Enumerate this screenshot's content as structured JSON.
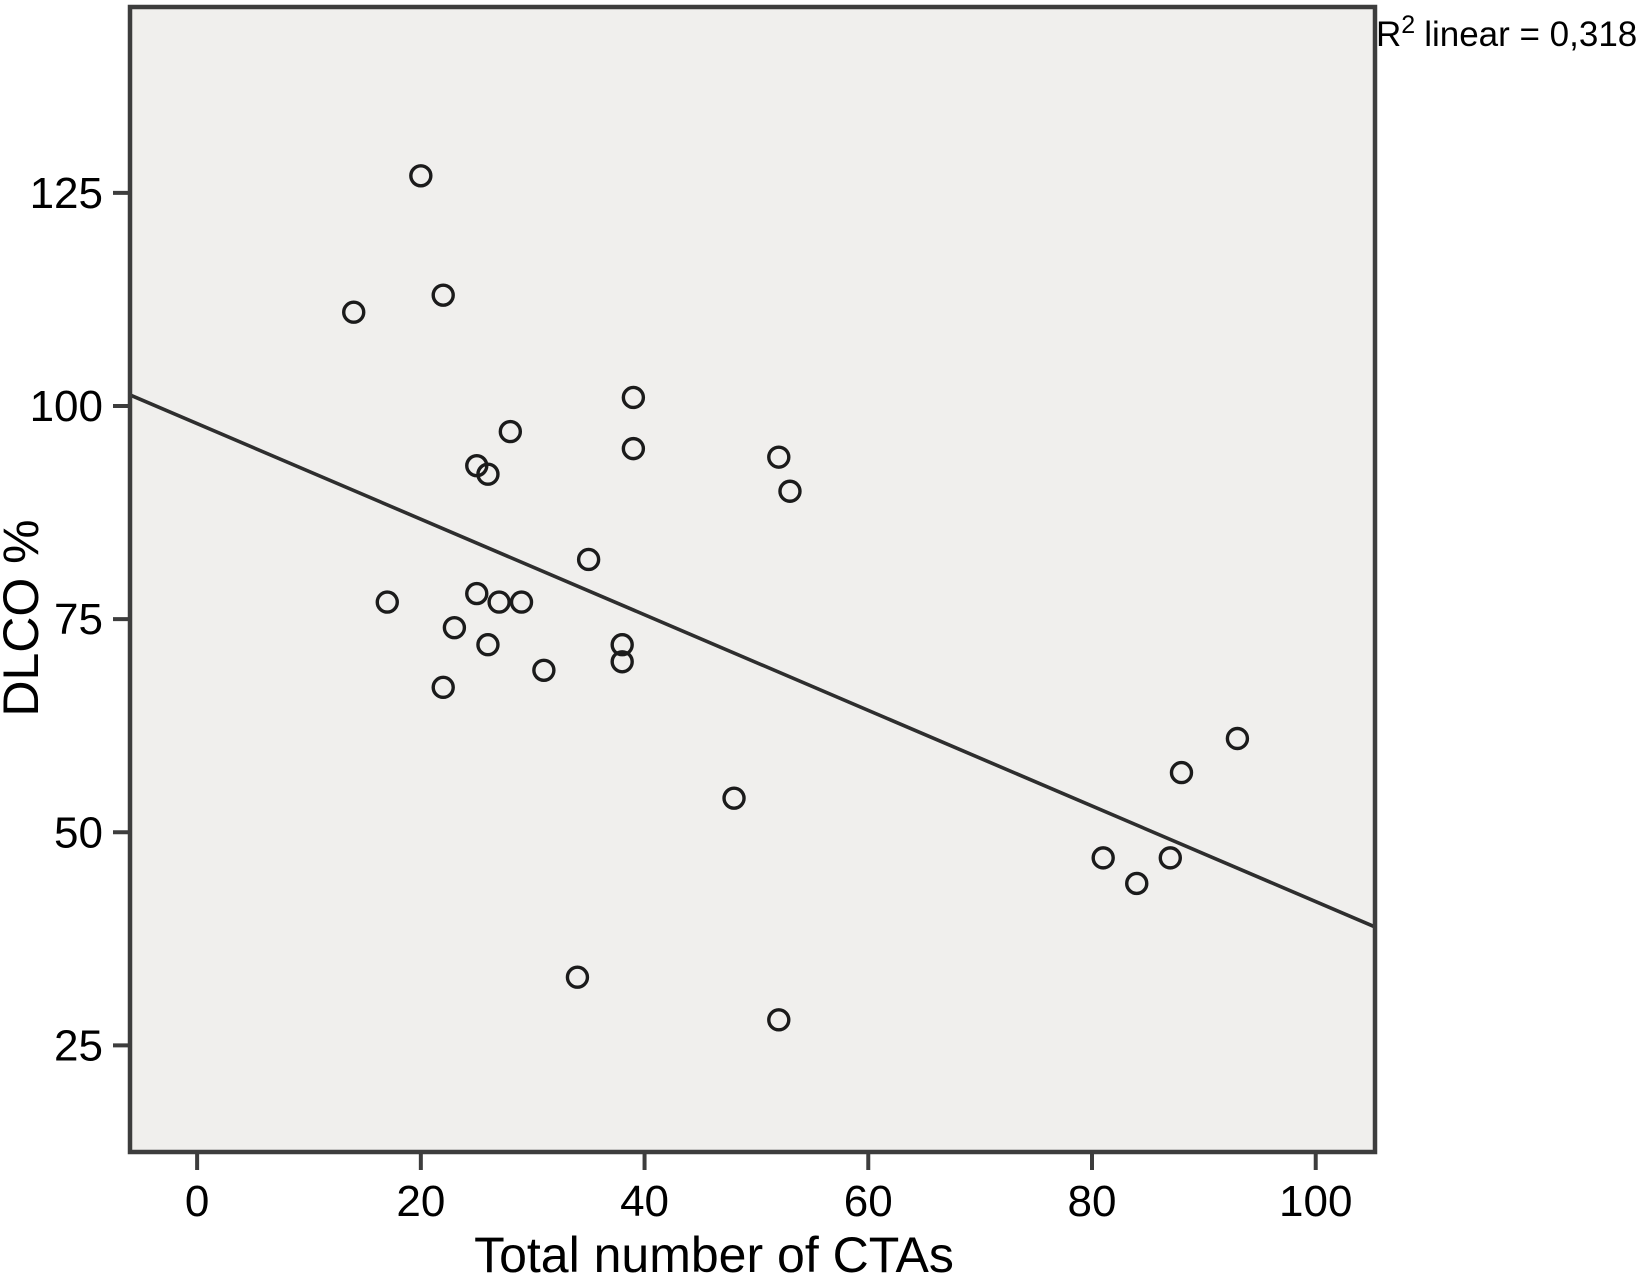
{
  "chart_data": {
    "type": "scatter",
    "title": "",
    "xlabel": "Total number of CTAs",
    "ylabel": "DLCO %",
    "annotation": {
      "base": "R",
      "sup": "2",
      "rest": "linear = 0,318",
      "full": "R² linear = 0,318"
    },
    "r_squared": 0.318,
    "xlim": [
      -6,
      105.3
    ],
    "ylim": [
      12.5,
      146.8
    ],
    "xticks": [
      0,
      20,
      40,
      60,
      80,
      100
    ],
    "yticks": [
      25,
      50,
      75,
      100,
      125
    ],
    "grid": false,
    "legend": "none",
    "marker": {
      "shape": "open-circle",
      "radius": 10,
      "color": "#1b1b1b",
      "stroke_width": 3.4
    },
    "fit_line": {
      "x1": -6,
      "y1": 101.3,
      "x2": 105.3,
      "y2": 38.9,
      "color": "#2e2e2e",
      "width": 3.6
    },
    "colors": {
      "plot_background": "#f0efed",
      "frame": "#3d3d3d",
      "page_background": "#ffffff",
      "text": "#000000"
    },
    "points": [
      [
        20,
        127
      ],
      [
        22,
        113
      ],
      [
        14,
        111
      ],
      [
        39,
        101
      ],
      [
        28,
        97
      ],
      [
        39,
        95
      ],
      [
        52,
        94
      ],
      [
        25,
        93
      ],
      [
        26,
        92
      ],
      [
        53,
        90
      ],
      [
        35,
        82
      ],
      [
        25,
        78
      ],
      [
        17,
        77
      ],
      [
        27,
        77
      ],
      [
        29,
        77
      ],
      [
        23,
        74
      ],
      [
        38,
        72
      ],
      [
        26,
        72
      ],
      [
        38,
        70
      ],
      [
        31,
        69
      ],
      [
        22,
        67
      ],
      [
        93,
        61
      ],
      [
        88,
        57
      ],
      [
        48,
        54
      ],
      [
        81,
        47
      ],
      [
        87,
        47
      ],
      [
        84,
        44
      ],
      [
        34,
        33
      ],
      [
        52,
        28
      ]
    ]
  }
}
